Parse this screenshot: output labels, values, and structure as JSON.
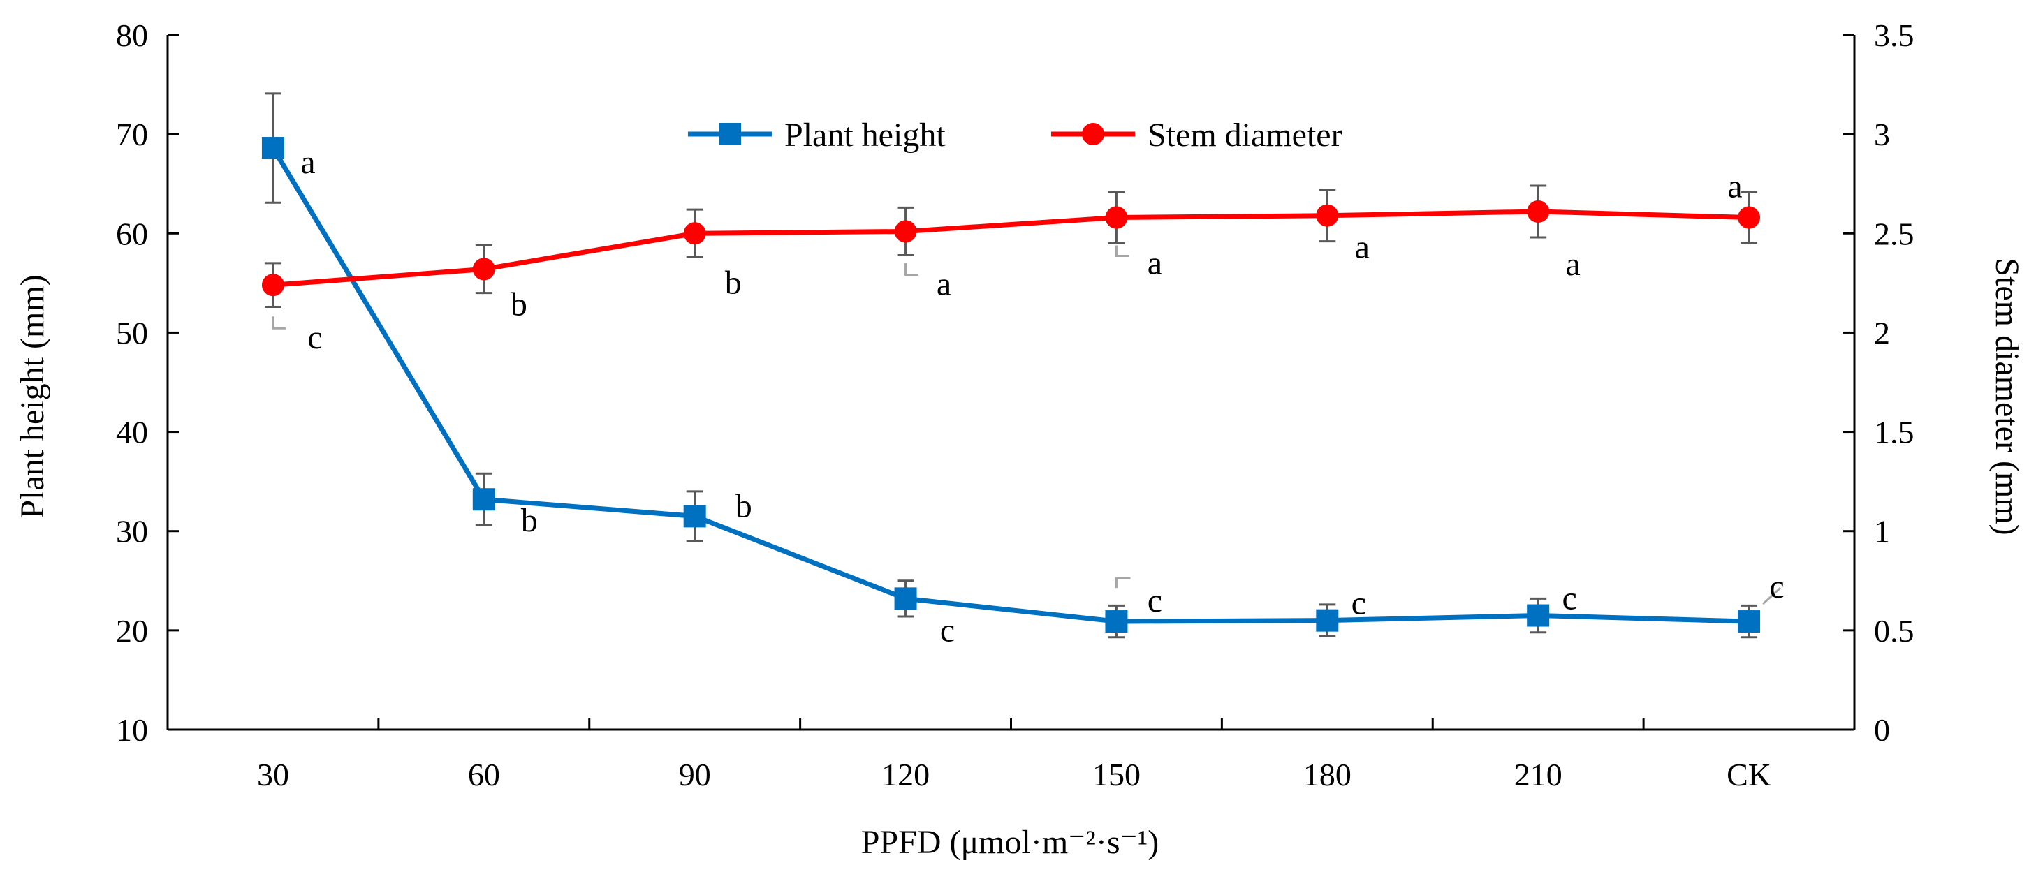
{
  "chart_data": {
    "type": "line",
    "xlabel": "PPFD (μmol·m⁻²·s⁻¹)",
    "ylabel_left": "Plant height (mm)",
    "ylabel_right": "Stem diameter (mm)",
    "categories": [
      "30",
      "60",
      "90",
      "120",
      "150",
      "180",
      "210",
      "CK"
    ],
    "y_left": {
      "min": 10,
      "max": 80,
      "ticks": [
        "10",
        "20",
        "30",
        "40",
        "50",
        "60",
        "70",
        "80"
      ]
    },
    "y_right": {
      "min": 0,
      "max": 3.5,
      "ticks": [
        "0",
        "0.5",
        "1",
        "1.5",
        "2",
        "2.5",
        "3",
        "3.5"
      ]
    },
    "grid": false,
    "legend_position": "top-center",
    "series": [
      {
        "name": "Plant height",
        "axis": "left",
        "color": "#0070C0",
        "marker": "square",
        "values": [
          68.6,
          33.2,
          31.5,
          23.2,
          20.9,
          21.0,
          21.5,
          20.9
        ],
        "errors": [
          5.5,
          2.6,
          2.5,
          1.8,
          1.6,
          1.6,
          1.7,
          1.6
        ],
        "labels": [
          "a",
          "b",
          "b",
          "c",
          "c",
          "c",
          "c",
          "c"
        ]
      },
      {
        "name": "Stem diameter",
        "axis": "right",
        "color": "#FF0000",
        "marker": "circle",
        "values": [
          2.24,
          2.32,
          2.5,
          2.51,
          2.58,
          2.59,
          2.61,
          2.58
        ],
        "errors": [
          0.11,
          0.12,
          0.12,
          0.12,
          0.13,
          0.13,
          0.13,
          0.13
        ],
        "labels": [
          "c",
          "b",
          "b",
          "a",
          "a",
          "a",
          "a",
          "a"
        ]
      }
    ]
  }
}
